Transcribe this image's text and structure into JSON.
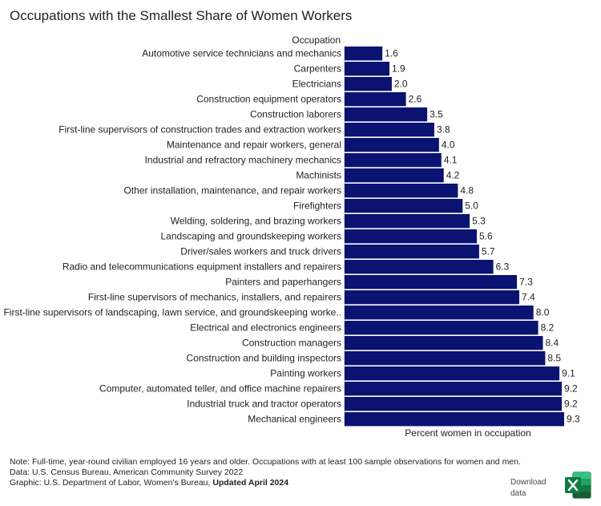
{
  "title": "Occupations with the Smallest Share of Women Workers",
  "chart_data": {
    "type": "bar",
    "orientation": "horizontal",
    "category_header": "Occupation",
    "xlabel": "Percent women in occupation",
    "bar_color": "#0a1372",
    "xlim": [
      0,
      9.3
    ],
    "grid": false,
    "categories": [
      "Automotive service technicians and mechanics",
      "Carpenters",
      "Electricians",
      "Construction equipment operators",
      "Construction laborers",
      "First-line supervisors of construction trades and extraction workers",
      "Maintenance and repair workers, general",
      "Industrial and refractory machinery mechanics",
      "Machinists",
      "Other installation, maintenance, and repair workers",
      "Firefighters",
      "Welding, soldering, and brazing workers",
      "Landscaping and groundskeeping workers",
      "Driver/sales workers and truck drivers",
      "Radio and telecommunications equipment installers and repairers",
      "Painters and paperhangers",
      "First-line supervisors of mechanics, installers, and repairers",
      "First-line supervisors of landscaping, lawn service, and groundskeeping worke..",
      "Electrical and electronics engineers",
      "Construction managers",
      "Construction and building inspectors",
      "Painting workers",
      "Computer, automated teller, and office machine repairers",
      "Industrial truck and tractor operators",
      "Mechanical engineers"
    ],
    "values": [
      1.6,
      1.9,
      2.0,
      2.6,
      3.5,
      3.8,
      4.0,
      4.1,
      4.2,
      4.8,
      5.0,
      5.3,
      5.6,
      5.7,
      6.3,
      7.3,
      7.4,
      8.0,
      8.2,
      8.4,
      8.5,
      9.1,
      9.2,
      9.2,
      9.3
    ],
    "value_labels": [
      "1.6",
      "1.9",
      "2.0",
      "2.6",
      "3.5",
      "3.8",
      "4.0",
      "4.1",
      "4.2",
      "4.8",
      "5.0",
      "5.3",
      "5.6",
      "5.7",
      "6.3",
      "7.3",
      "7.4",
      "8.0",
      "8.2",
      "8.4",
      "8.5",
      "9.1",
      "9.2",
      "9.2",
      "9.3"
    ]
  },
  "notes": {
    "note": "Note: Full-time, year-round civilian employed 16 years and older. Occupations with at least 100 sample observations for women and men.",
    "data": "Data: U.S. Census Bureau, American Community Survey 2022",
    "graphic_prefix": "Graphic: U.S. Department of Labor, Women's Bureau, ",
    "graphic_updated": "Updated April 2024"
  },
  "download": {
    "label_line1": "Download",
    "label_line2": "data",
    "icon": "excel-icon",
    "icon_color": "#1d6f42"
  }
}
